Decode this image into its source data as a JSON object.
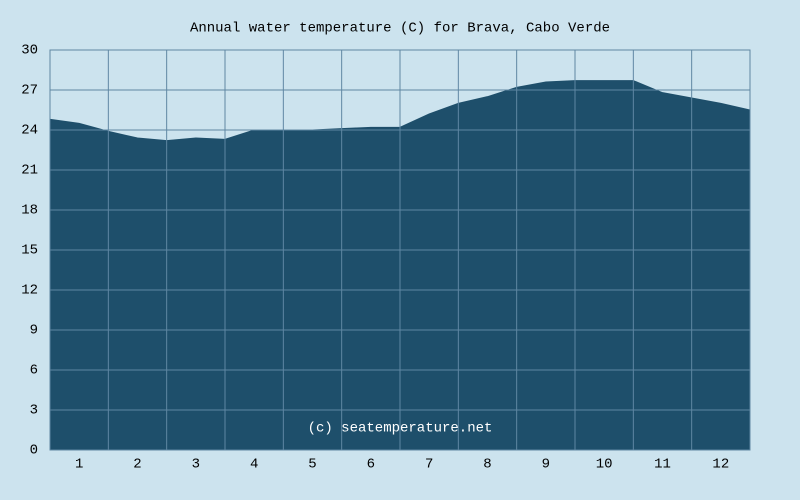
{
  "chart_data": {
    "type": "area",
    "title": "Annual water temperature (C) for Brava, Cabo Verde",
    "watermark": "(c) seatemperature.net",
    "x": [
      0,
      0.5,
      1,
      1.5,
      2,
      2.5,
      3,
      3.5,
      4,
      4.5,
      5,
      5.5,
      6,
      6.5,
      7,
      7.5,
      8,
      8.5,
      9,
      9.5,
      10,
      10.5,
      11,
      11.5,
      12
    ],
    "values": [
      24.8,
      24.5,
      23.9,
      23.4,
      23.2,
      23.4,
      23.3,
      24.0,
      24.0,
      24.0,
      24.1,
      24.2,
      24.2,
      25.2,
      26.0,
      26.5,
      27.2,
      27.6,
      27.7,
      27.7,
      27.7,
      26.8,
      26.4,
      26.0,
      25.5
    ],
    "color": "#1e4f6b",
    "xlim": [
      0,
      12
    ],
    "xticks": [
      {
        "value": 0.5,
        "label": "1"
      },
      {
        "value": 1.5,
        "label": "2"
      },
      {
        "value": 2.5,
        "label": "3"
      },
      {
        "value": 3.5,
        "label": "4"
      },
      {
        "value": 4.5,
        "label": "5"
      },
      {
        "value": 5.5,
        "label": "6"
      },
      {
        "value": 6.5,
        "label": "7"
      },
      {
        "value": 7.5,
        "label": "8"
      },
      {
        "value": 8.5,
        "label": "9"
      },
      {
        "value": 9.5,
        "label": "10"
      },
      {
        "value": 10.5,
        "label": "11"
      },
      {
        "value": 11.5,
        "label": "12"
      }
    ],
    "xgrid": [
      0,
      1,
      2,
      3,
      4,
      5,
      6,
      7,
      8,
      9,
      10,
      11,
      12
    ],
    "ylim": [
      0,
      30
    ],
    "yticks": [
      0,
      3,
      6,
      9,
      12,
      15,
      18,
      21,
      24,
      27,
      30
    ],
    "grid": true
  }
}
